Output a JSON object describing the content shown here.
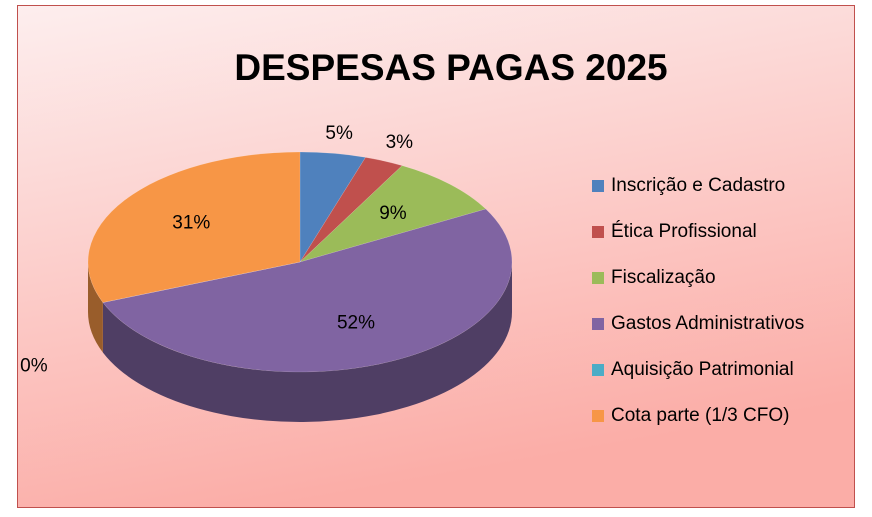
{
  "chart_data": {
    "type": "pie",
    "title": "DESPESAS PAGAS 2025",
    "categories": [
      "Inscrição e Cadastro",
      "Ética Profissional",
      "Fiscalização",
      "Gastos Administrativos",
      "Aquisição Patrimonial",
      "Cota parte (1/3 CFO)"
    ],
    "values": [
      5,
      3,
      9,
      52,
      0,
      31
    ],
    "value_labels": [
      "5%",
      "3%",
      "9%",
      "52%",
      "0%",
      "31%"
    ],
    "colors": [
      "#4f81bd",
      "#c0504d",
      "#9bbb59",
      "#8064a2",
      "#4bacc6",
      "#f79646"
    ],
    "legend": "right"
  }
}
